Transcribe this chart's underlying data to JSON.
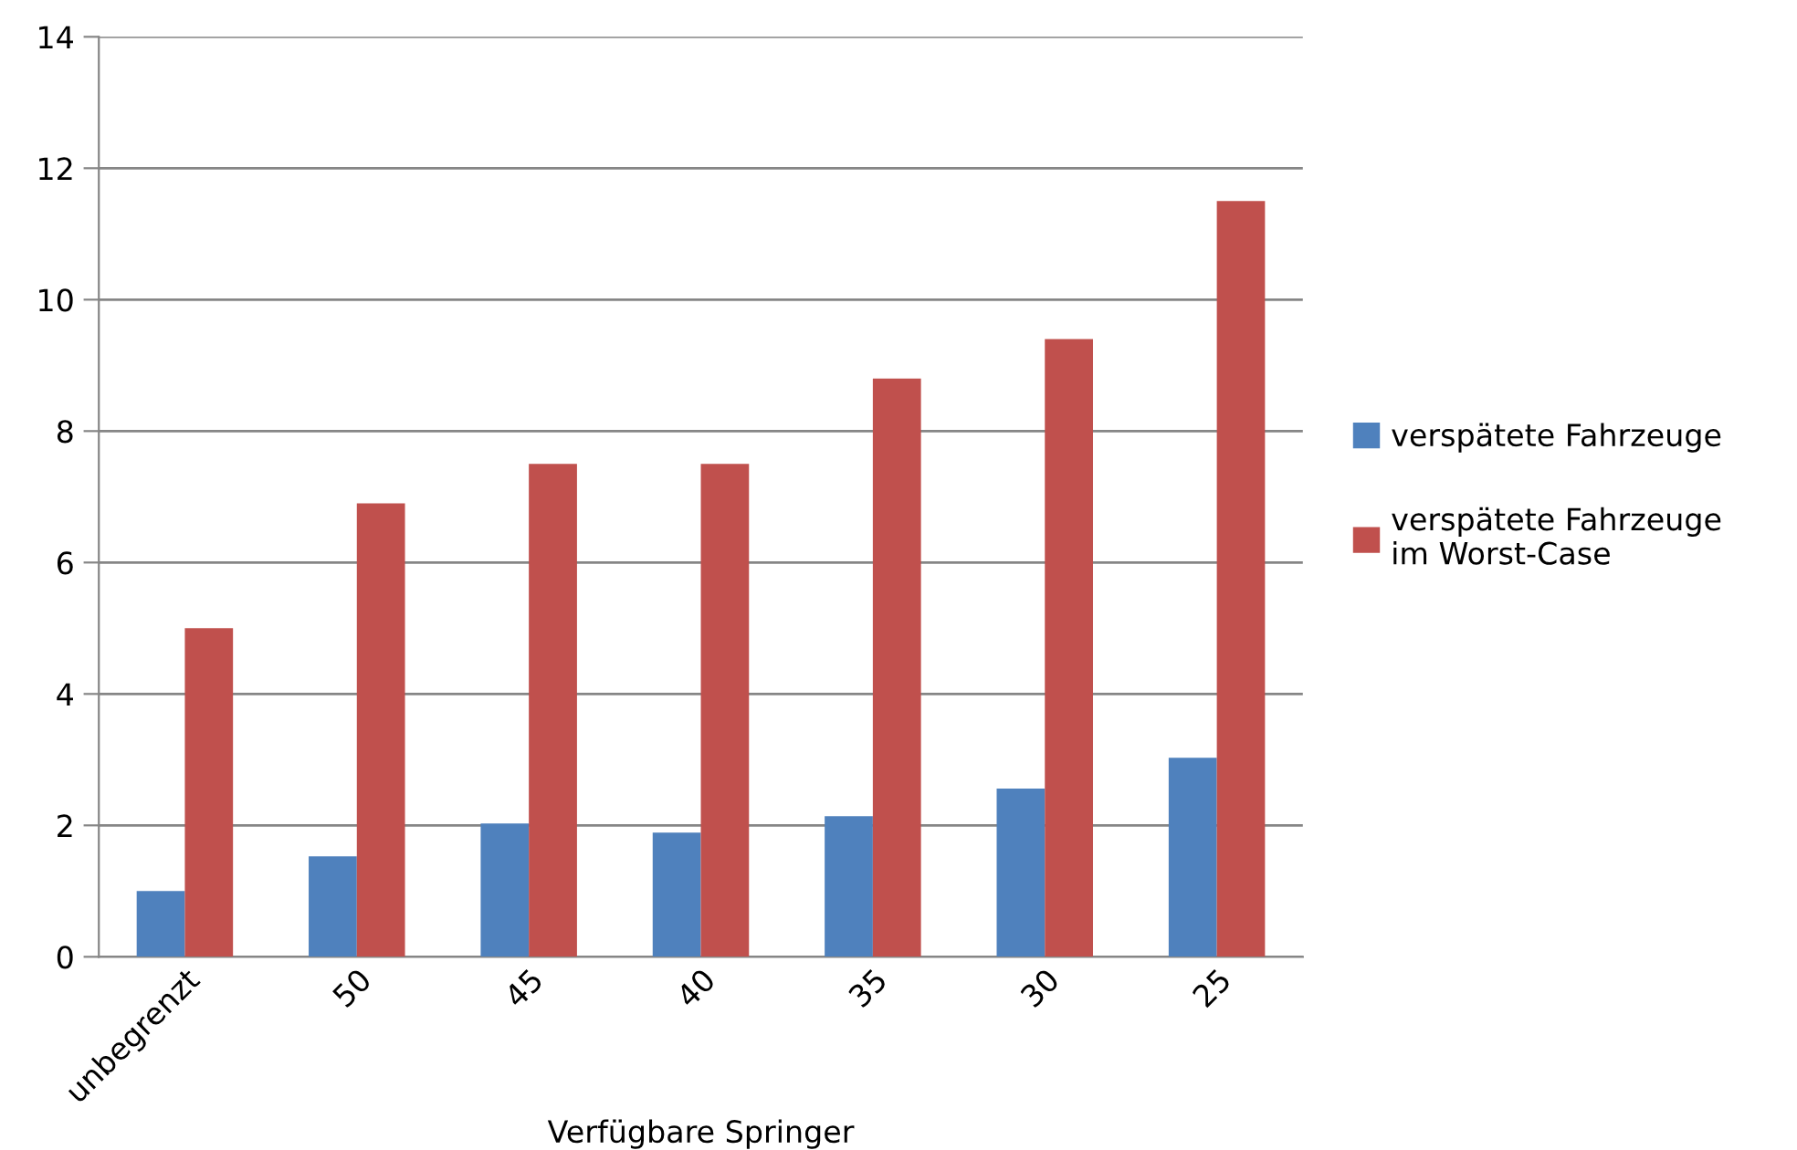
{
  "chart_data": {
    "type": "bar",
    "xlabel": "Verfügbare Springer",
    "categories": [
      "unbegrenzt",
      "50",
      "45",
      "40",
      "35",
      "30",
      "25"
    ],
    "series": [
      {
        "name": "verspätete Fahrzeuge",
        "color": "#4f81bd",
        "values": [
          1.0,
          1.53,
          2.03,
          1.89,
          2.14,
          2.56,
          3.03
        ]
      },
      {
        "name": "verspätete Fahrzeuge\nim Worst-Case",
        "color": "#c0504d",
        "values": [
          5.0,
          6.9,
          7.5,
          7.5,
          8.8,
          9.4,
          11.5
        ]
      }
    ],
    "ylim": [
      0,
      14
    ],
    "yticks": [
      0,
      2,
      4,
      6,
      8,
      10,
      12,
      14
    ],
    "grid": "y",
    "legend": "right"
  }
}
